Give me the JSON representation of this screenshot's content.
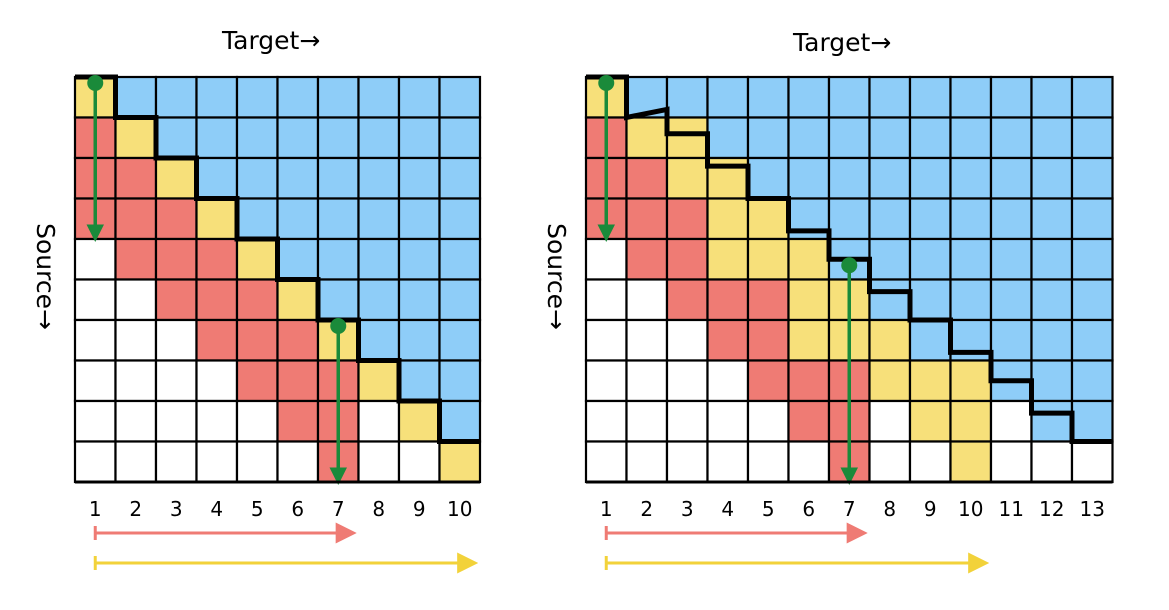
{
  "colors": {
    "blue": "#8ecdf8",
    "red": "#ef7b74",
    "yellow": "#f7e07a",
    "white": "#ffffff",
    "grid": "#000000",
    "green": "#1a8a3a",
    "red_arrow": "#ef7b74",
    "yellow_arrow": "#f2d23a"
  },
  "diagrams": [
    {
      "title": "Target→",
      "side_label": "Source→",
      "rows": 10,
      "cols": 10,
      "column_labels": [
        "1",
        "2",
        "3",
        "4",
        "5",
        "6",
        "7",
        "8",
        "9",
        "10"
      ],
      "cells": [
        "YBBBBBBBBB",
        "RYBBBBBBBB",
        "RRYBBBBBBB",
        "RRRYBBBBBB",
        "WRRRYBBBBB",
        "WWRRRYBBBB",
        "WWWRRRYBBB",
        "WWWWRRRYBB",
        "WWWWWRRWYB",
        "WWWWWWRWWY"
      ],
      "staircase": [
        [
          0,
          0
        ],
        [
          1,
          0
        ],
        [
          1,
          1
        ],
        [
          2,
          1
        ],
        [
          2,
          2
        ],
        [
          3,
          2
        ],
        [
          3,
          3
        ],
        [
          4,
          3
        ],
        [
          4,
          4
        ],
        [
          5,
          4
        ],
        [
          5,
          5
        ],
        [
          6,
          5
        ],
        [
          6,
          6
        ],
        [
          7,
          6
        ],
        [
          7,
          7
        ],
        [
          8,
          7
        ],
        [
          8,
          8
        ],
        [
          9,
          8
        ],
        [
          9,
          9
        ],
        [
          10,
          9
        ]
      ],
      "green_arrows": [
        {
          "column": 1,
          "from_row": 0,
          "to_row": 4
        },
        {
          "column": 7,
          "from_row": 6,
          "to_row": 10
        }
      ],
      "red_arrow_to_column": 7,
      "yellow_arrow_to_column": 10
    },
    {
      "title": "Target→",
      "side_label": "Source→",
      "rows": 10,
      "cols": 13,
      "column_labels": [
        "1",
        "2",
        "3",
        "4",
        "5",
        "6",
        "7",
        "8",
        "9",
        "10",
        "11",
        "12",
        "13"
      ],
      "cells": [
        "YBBBBBBBBBBBB",
        "RYYBBBBBBBBBB",
        "RRYYBBBBBBBBB",
        "RRRYYBBBBBBBB",
        "WRRYYYBBBBBBB",
        "WWRRRYYBBBBBB",
        "WWWRRYYYBBBBB",
        "WWWWRRRYYYBBB",
        "WWWWWRRWYYWBB",
        "WWWWWWRWWYWWW"
      ],
      "staircase": [
        [
          0,
          0
        ],
        [
          1,
          0
        ],
        [
          1,
          1
        ],
        [
          2,
          0.8
        ],
        [
          2,
          1.4
        ],
        [
          3,
          1.4
        ],
        [
          3,
          2.2
        ],
        [
          4,
          2.2
        ],
        [
          4,
          3.0
        ],
        [
          5,
          3.0
        ],
        [
          5,
          3.8
        ],
        [
          6,
          3.8
        ],
        [
          6,
          4.5
        ],
        [
          7,
          4.5
        ],
        [
          7,
          5.3
        ],
        [
          8,
          5.3
        ],
        [
          8,
          6.0
        ],
        [
          9,
          6.0
        ],
        [
          9,
          6.8
        ],
        [
          10,
          6.8
        ],
        [
          10,
          7.5
        ],
        [
          11,
          7.5
        ],
        [
          11,
          8.3
        ],
        [
          12,
          8.3
        ],
        [
          12,
          9.0
        ],
        [
          13,
          9.0
        ]
      ],
      "green_arrows": [
        {
          "column": 1,
          "from_row": 0,
          "to_row": 4
        },
        {
          "column": 7,
          "from_row": 4.5,
          "to_row": 10
        }
      ],
      "red_arrow_to_column": 7,
      "yellow_arrow_to_column": 10
    }
  ]
}
